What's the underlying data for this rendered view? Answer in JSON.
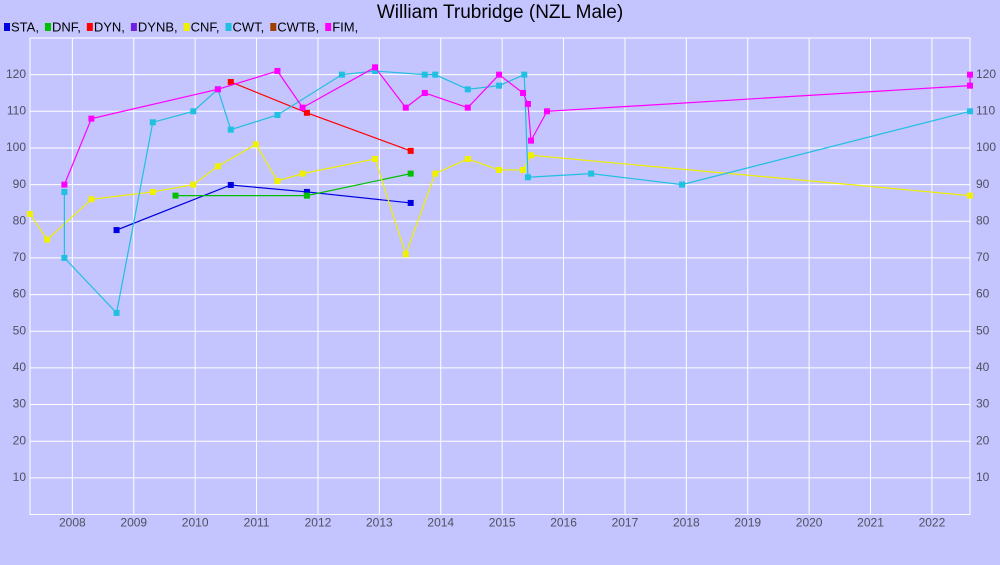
{
  "chart_data": {
    "type": "line",
    "title": "William Trubridge (NZL Male)",
    "xlim": [
      2007.31,
      2022.62
    ],
    "xticks": [
      2008,
      2009,
      2010,
      2011,
      2012,
      2013,
      2014,
      2015,
      2016,
      2017,
      2018,
      2019,
      2020,
      2021,
      2022
    ],
    "ylim": [
      0,
      130
    ],
    "yticks": [
      10,
      20,
      30,
      40,
      50,
      60,
      70,
      80,
      90,
      100,
      110,
      120
    ],
    "grid": true,
    "series": [
      {
        "name": "STA,",
        "color": "#0000e0",
        "x": [
          2008.72,
          2010.58,
          2011.82,
          2013.51
        ],
        "values": [
          77.6,
          89.9,
          88,
          85
        ]
      },
      {
        "name": "DNF,",
        "color": "#00c000",
        "x": [
          2009.68,
          2011.82,
          2013.51
        ],
        "values": [
          87,
          87,
          93
        ]
      },
      {
        "name": "DYN,",
        "color": "#ff0000",
        "x": [
          2010.58,
          2011.82,
          2013.51
        ],
        "values": [
          118,
          109.6,
          99.2
        ]
      },
      {
        "name": "DYNB,",
        "color": "#7020e0",
        "x": [],
        "values": []
      },
      {
        "name": "CNF,",
        "color": "#f0f000",
        "x": [
          2007.31,
          2007.59,
          2008.31,
          2009.31,
          2009.97,
          2010.37,
          2010.99,
          2011.34,
          2011.75,
          2012.93,
          2013.43,
          2013.91,
          2014.44,
          2014.95,
          2015.34,
          2015.47,
          2022.62
        ],
        "values": [
          82,
          75,
          86,
          88,
          90,
          95,
          101,
          91,
          93,
          97,
          71,
          93,
          97,
          94,
          94,
          98,
          87
        ]
      },
      {
        "name": "CWT,",
        "color": "#20c0e0",
        "x": [
          2007.87,
          2007.87,
          2008.72,
          2009.31,
          2009.97,
          2010.37,
          2010.58,
          2011.34,
          2012.39,
          2012.93,
          2013.74,
          2013.91,
          2014.44,
          2014.95,
          2015.36,
          2015.42,
          2016.45,
          2017.93,
          2022.62
        ],
        "values": [
          88,
          70,
          55,
          107,
          110,
          116,
          105,
          109,
          120,
          121,
          120,
          120,
          116,
          117,
          120,
          92,
          93,
          90,
          110
        ]
      },
      {
        "name": "CWTB,",
        "color": "#a04000",
        "x": [],
        "values": []
      },
      {
        "name": "FIM,",
        "color": "#ff00ff",
        "x": [
          2007.87,
          2008.31,
          2010.37,
          2011.34,
          2011.75,
          2012.93,
          2013.43,
          2013.74,
          2014.44,
          2014.95,
          2015.34,
          2015.42,
          2015.47,
          2015.73,
          2022.62,
          2022.62
        ],
        "values": [
          90,
          108,
          116,
          121,
          111,
          122,
          111,
          115,
          111,
          120,
          115,
          112,
          102,
          110,
          117,
          120
        ]
      }
    ]
  }
}
